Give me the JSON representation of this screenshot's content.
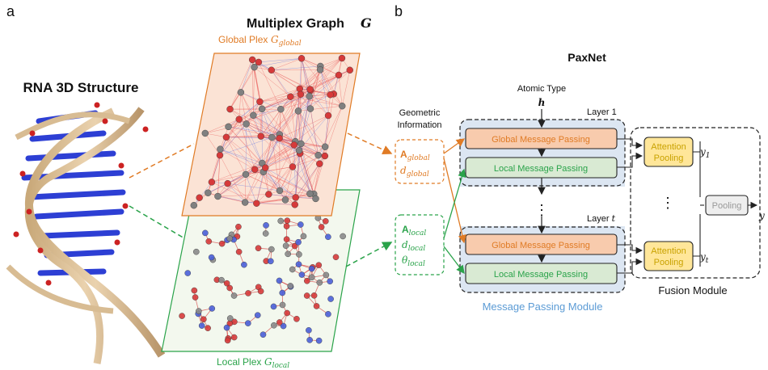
{
  "panel_a": {
    "label": "a",
    "rna_title": "RNA 3D Structure",
    "graph_title": "Multiplex Graph",
    "graph_symbol": "G",
    "global_plex_label": "Global Plex",
    "global_plex_sub": "global",
    "local_plex_label": "Local Plex",
    "local_plex_sub": "local"
  },
  "panel_b": {
    "label": "b",
    "model_title": "PaxNet",
    "atomic_type": "Atomic Type",
    "h_symbol": "h",
    "geometric_line1": "Geometric",
    "geometric_line2": "Information",
    "global_inputs": [
      "A",
      "d"
    ],
    "global_inputs_sub": "global",
    "local_inputs": [
      "A",
      "d",
      "θ"
    ],
    "local_inputs_sub": "local",
    "layer1": "Layer 1",
    "layer_t": "Layer",
    "layer_t_symbol": "t",
    "global_mp": "Global Message Passing",
    "local_mp": "Local Message Passing",
    "attention_line1": "Attention",
    "attention_line2": "Pooling",
    "pooling": "Pooling",
    "dots_vertical": "⋮",
    "y": "y",
    "y1_sub": "1",
    "yt_sub": "t",
    "mp_module": "Message Passing Module",
    "fusion_module": "Fusion Module"
  },
  "colors": {
    "orange": "#e07b25",
    "green": "#2aa34a",
    "blue_module": "#5b9bd5",
    "module_fill": "#dce6f2",
    "global_fill": "#f8cbad",
    "local_fill": "#d9ead3",
    "attention_fill": "#ffe699",
    "attention_text": "#c9a200",
    "pooling_text": "#999999"
  }
}
